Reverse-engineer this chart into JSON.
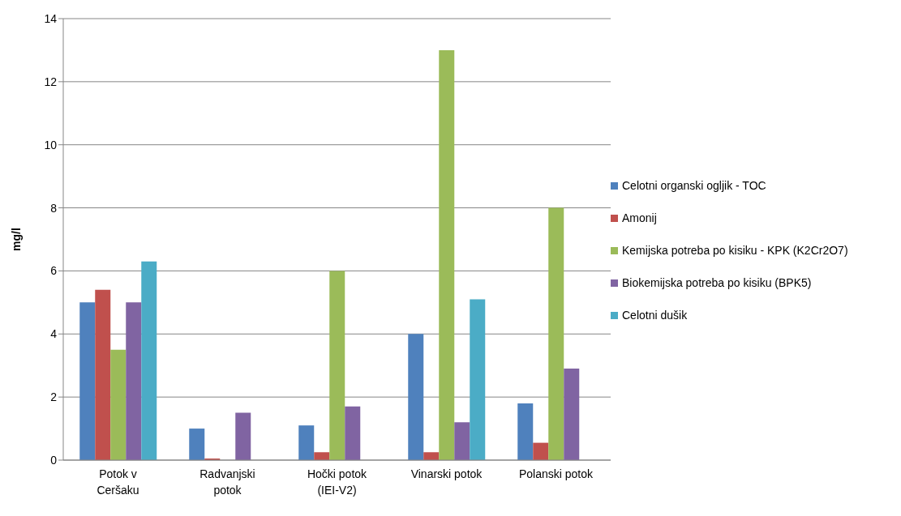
{
  "chart_data": {
    "type": "bar",
    "ylabel": "mg/l",
    "categories": [
      "Potok v Ceršaku",
      "Radvanjski potok",
      "Hočki potok (IEI-V2)",
      "Vinarski potok",
      "Polanski potok"
    ],
    "series": [
      {
        "name": "Celotni organski ogljik - TOC",
        "color": "#4f81bd",
        "values": [
          5.0,
          1.0,
          1.1,
          4.0,
          1.8
        ]
      },
      {
        "name": "Amonij",
        "color": "#c0504d",
        "values": [
          5.4,
          0.05,
          0.25,
          0.25,
          0.55
        ]
      },
      {
        "name": "Kemijska potreba po kisiku - KPK (K2Cr2O7)",
        "color": "#9bbb59",
        "values": [
          3.5,
          null,
          6.0,
          13.0,
          8.0
        ]
      },
      {
        "name": "Biokemijska potreba po kisiku (BPK5)",
        "color": "#8064a2",
        "values": [
          5.0,
          1.5,
          1.7,
          1.2,
          2.9
        ]
      },
      {
        "name": "Celotni dušik",
        "color": "#4bacc6",
        "values": [
          6.3,
          null,
          null,
          5.1,
          null
        ]
      }
    ],
    "ylim": [
      0,
      14
    ],
    "yticks": [
      0,
      2,
      4,
      6,
      8,
      10,
      12,
      14
    ],
    "grid": "y",
    "legend": "right"
  }
}
